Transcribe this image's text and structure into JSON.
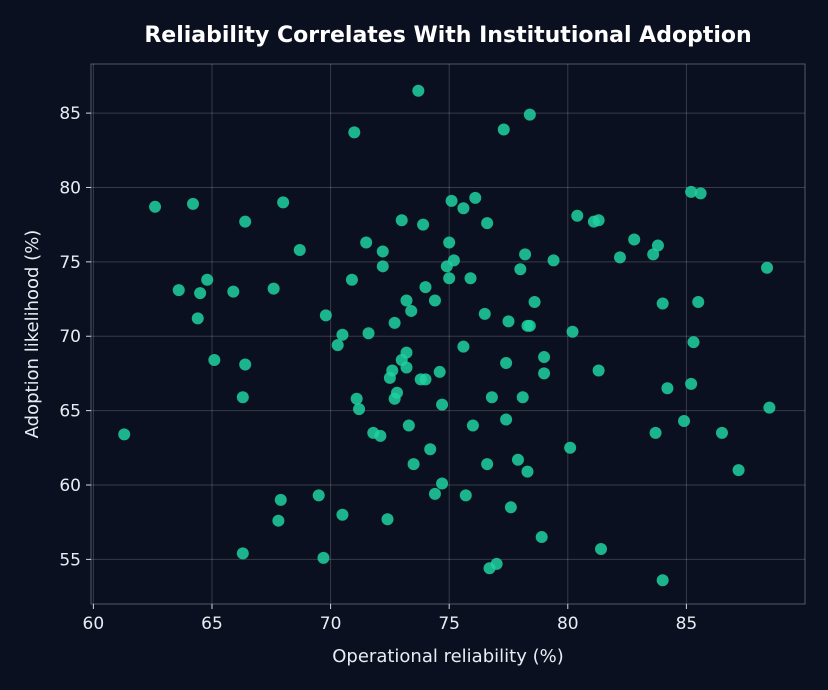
{
  "chart_data": {
    "type": "scatter",
    "title": "Reliability Correlates With Institutional Adoption",
    "xlabel": "Operational reliability (%)",
    "ylabel": "Adoption likelihood (%)",
    "xlim": [
      59.9,
      90
    ],
    "ylim": [
      52,
      88.3
    ],
    "xticks": [
      60,
      65,
      70,
      75,
      80,
      85
    ],
    "yticks": [
      55,
      60,
      65,
      70,
      75,
      80,
      85
    ],
    "grid": true,
    "point_color": "#1fd1a0",
    "background": "#0b1020",
    "points": [
      {
        "x": 61.3,
        "y": 63.4
      },
      {
        "x": 62.6,
        "y": 78.7
      },
      {
        "x": 63.6,
        "y": 73.1
      },
      {
        "x": 64.2,
        "y": 78.9
      },
      {
        "x": 64.4,
        "y": 71.2
      },
      {
        "x": 64.5,
        "y": 72.9
      },
      {
        "x": 64.8,
        "y": 73.8
      },
      {
        "x": 65.1,
        "y": 68.4
      },
      {
        "x": 65.9,
        "y": 73.0
      },
      {
        "x": 66.3,
        "y": 55.4
      },
      {
        "x": 66.3,
        "y": 65.9
      },
      {
        "x": 66.4,
        "y": 68.1
      },
      {
        "x": 66.4,
        "y": 77.7
      },
      {
        "x": 67.6,
        "y": 73.2
      },
      {
        "x": 67.8,
        "y": 57.6
      },
      {
        "x": 67.9,
        "y": 59.0
      },
      {
        "x": 68.0,
        "y": 79.0
      },
      {
        "x": 68.7,
        "y": 75.8
      },
      {
        "x": 69.5,
        "y": 59.3
      },
      {
        "x": 69.7,
        "y": 55.1
      },
      {
        "x": 69.8,
        "y": 71.4
      },
      {
        "x": 70.3,
        "y": 69.4
      },
      {
        "x": 70.5,
        "y": 58.0
      },
      {
        "x": 70.5,
        "y": 70.1
      },
      {
        "x": 70.9,
        "y": 73.8
      },
      {
        "x": 71.0,
        "y": 83.7
      },
      {
        "x": 71.1,
        "y": 65.8
      },
      {
        "x": 71.2,
        "y": 65.1
      },
      {
        "x": 71.5,
        "y": 76.3
      },
      {
        "x": 71.6,
        "y": 70.2
      },
      {
        "x": 71.8,
        "y": 63.5
      },
      {
        "x": 72.1,
        "y": 63.3
      },
      {
        "x": 72.2,
        "y": 74.7
      },
      {
        "x": 72.2,
        "y": 75.7
      },
      {
        "x": 72.4,
        "y": 57.7
      },
      {
        "x": 72.5,
        "y": 67.2
      },
      {
        "x": 72.6,
        "y": 67.7
      },
      {
        "x": 72.7,
        "y": 65.8
      },
      {
        "x": 72.7,
        "y": 70.9
      },
      {
        "x": 72.8,
        "y": 66.2
      },
      {
        "x": 73.0,
        "y": 68.4
      },
      {
        "x": 73.0,
        "y": 77.8
      },
      {
        "x": 73.2,
        "y": 72.4
      },
      {
        "x": 73.2,
        "y": 67.9
      },
      {
        "x": 73.2,
        "y": 68.9
      },
      {
        "x": 73.3,
        "y": 64.0
      },
      {
        "x": 73.4,
        "y": 71.7
      },
      {
        "x": 73.5,
        "y": 61.4
      },
      {
        "x": 73.7,
        "y": 86.5
      },
      {
        "x": 73.8,
        "y": 67.1
      },
      {
        "x": 73.9,
        "y": 77.5
      },
      {
        "x": 74.0,
        "y": 73.3
      },
      {
        "x": 74.0,
        "y": 67.1
      },
      {
        "x": 74.2,
        "y": 62.4
      },
      {
        "x": 74.4,
        "y": 72.4
      },
      {
        "x": 74.4,
        "y": 59.4
      },
      {
        "x": 74.6,
        "y": 67.6
      },
      {
        "x": 74.7,
        "y": 65.4
      },
      {
        "x": 74.7,
        "y": 60.1
      },
      {
        "x": 74.9,
        "y": 74.7
      },
      {
        "x": 75.0,
        "y": 73.9
      },
      {
        "x": 75.0,
        "y": 76.3
      },
      {
        "x": 75.1,
        "y": 79.1
      },
      {
        "x": 75.2,
        "y": 75.1
      },
      {
        "x": 75.6,
        "y": 69.3
      },
      {
        "x": 75.6,
        "y": 78.6
      },
      {
        "x": 75.7,
        "y": 59.3
      },
      {
        "x": 75.9,
        "y": 73.9
      },
      {
        "x": 76.0,
        "y": 64.0
      },
      {
        "x": 76.1,
        "y": 79.3
      },
      {
        "x": 76.5,
        "y": 71.5
      },
      {
        "x": 76.6,
        "y": 77.6
      },
      {
        "x": 76.6,
        "y": 61.4
      },
      {
        "x": 76.7,
        "y": 54.4
      },
      {
        "x": 76.8,
        "y": 65.9
      },
      {
        "x": 77.0,
        "y": 54.7
      },
      {
        "x": 77.3,
        "y": 83.9
      },
      {
        "x": 77.4,
        "y": 64.4
      },
      {
        "x": 77.4,
        "y": 68.2
      },
      {
        "x": 77.5,
        "y": 71.0
      },
      {
        "x": 77.6,
        "y": 58.5
      },
      {
        "x": 77.9,
        "y": 61.7
      },
      {
        "x": 78.0,
        "y": 74.5
      },
      {
        "x": 78.1,
        "y": 65.9
      },
      {
        "x": 78.2,
        "y": 75.5
      },
      {
        "x": 78.3,
        "y": 60.9
      },
      {
        "x": 78.3,
        "y": 70.7
      },
      {
        "x": 78.4,
        "y": 70.7
      },
      {
        "x": 78.4,
        "y": 84.9
      },
      {
        "x": 78.6,
        "y": 72.3
      },
      {
        "x": 78.9,
        "y": 56.5
      },
      {
        "x": 79.0,
        "y": 68.6
      },
      {
        "x": 79.0,
        "y": 67.5
      },
      {
        "x": 79.4,
        "y": 75.1
      },
      {
        "x": 80.1,
        "y": 62.5
      },
      {
        "x": 80.2,
        "y": 70.3
      },
      {
        "x": 80.4,
        "y": 78.1
      },
      {
        "x": 81.1,
        "y": 77.7
      },
      {
        "x": 81.3,
        "y": 67.7
      },
      {
        "x": 81.3,
        "y": 77.8
      },
      {
        "x": 81.4,
        "y": 55.7
      },
      {
        "x": 82.2,
        "y": 75.3
      },
      {
        "x": 82.8,
        "y": 76.5
      },
      {
        "x": 83.6,
        "y": 75.5
      },
      {
        "x": 83.7,
        "y": 63.5
      },
      {
        "x": 83.8,
        "y": 76.1
      },
      {
        "x": 84.0,
        "y": 72.2
      },
      {
        "x": 84.0,
        "y": 53.6
      },
      {
        "x": 84.2,
        "y": 66.5
      },
      {
        "x": 84.9,
        "y": 64.3
      },
      {
        "x": 85.2,
        "y": 66.8
      },
      {
        "x": 85.2,
        "y": 79.7
      },
      {
        "x": 85.3,
        "y": 69.6
      },
      {
        "x": 85.5,
        "y": 72.3
      },
      {
        "x": 85.6,
        "y": 79.6
      },
      {
        "x": 86.5,
        "y": 63.5
      },
      {
        "x": 87.2,
        "y": 61.0
      },
      {
        "x": 88.4,
        "y": 74.6
      },
      {
        "x": 88.5,
        "y": 65.2
      }
    ]
  }
}
